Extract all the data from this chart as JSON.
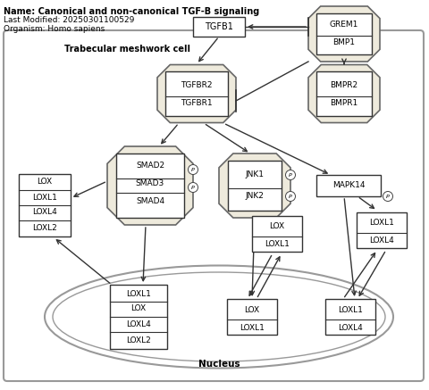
{
  "title": "Name: Canonical and non-canonical TGF-B signaling",
  "last_modified": "Last Modified: 20250301100529",
  "organism": "Organism: Homo sapiens",
  "bg": "#ffffff",
  "node_fill": "#eeeadc",
  "node_edge": "#666666",
  "rect_fill": "#ffffff",
  "rect_edge": "#333333",
  "cell_edge": "#999999",
  "font": 6.5,
  "header_font": 7.0
}
